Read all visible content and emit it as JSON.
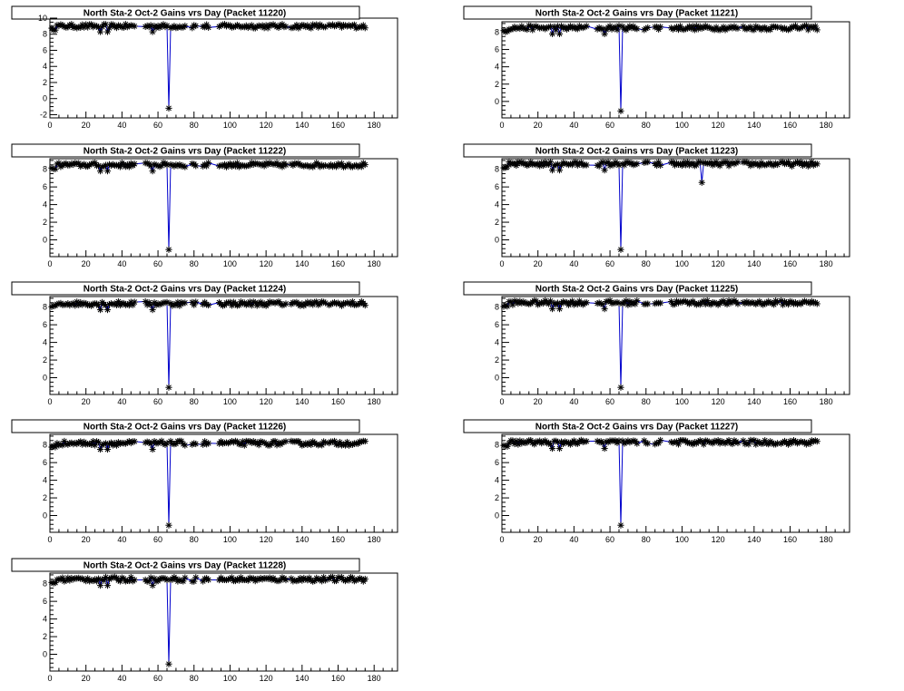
{
  "colors": {
    "series_line": "#0000cc",
    "marker": "#000000",
    "frame": "#000000",
    "background": "#ffffff"
  },
  "chart_data": [
    {
      "type": "scatter",
      "title": "North Sta-2 Oct-2 Gains vrs Day (Packet 11220)",
      "xlabel": "",
      "ylabel": "",
      "xlim": [
        0,
        193
      ],
      "ylim": [
        -2.4,
        10
      ],
      "xticks": [
        0,
        20,
        40,
        60,
        80,
        100,
        120,
        140,
        160,
        180
      ],
      "yticks": [
        -2,
        0,
        2,
        4,
        6,
        8,
        10
      ],
      "baseline": 9.0,
      "dips": [
        {
          "x": 66,
          "y": -1.2
        }
      ],
      "grid": false
    },
    {
      "type": "scatter",
      "title": "North Sta-2 Oct-2 Gains vrs Day (Packet 11221)",
      "xlabel": "",
      "ylabel": "",
      "xlim": [
        0,
        193
      ],
      "ylim": [
        -1.9,
        9.2
      ],
      "xticks": [
        0,
        20,
        40,
        60,
        80,
        100,
        120,
        140,
        160,
        180
      ],
      "yticks": [
        0,
        2,
        4,
        6,
        8
      ],
      "baseline": 8.5,
      "dips": [
        {
          "x": 66,
          "y": -1.1
        }
      ],
      "grid": false
    },
    {
      "type": "scatter",
      "title": "North Sta-2 Oct-2 Gains vrs Day (Packet 11222)",
      "xlabel": "",
      "ylabel": "",
      "xlim": [
        0,
        193
      ],
      "ylim": [
        -1.9,
        9.2
      ],
      "xticks": [
        0,
        20,
        40,
        60,
        80,
        100,
        120,
        140,
        160,
        180
      ],
      "yticks": [
        0,
        2,
        4,
        6,
        8
      ],
      "baseline": 8.5,
      "dips": [
        {
          "x": 66,
          "y": -1.1
        }
      ],
      "grid": false
    },
    {
      "type": "scatter",
      "title": "North Sta-2 Oct-2 Gains vrs Day (Packet 11223)",
      "xlabel": "",
      "ylabel": "",
      "xlim": [
        0,
        193
      ],
      "ylim": [
        -1.9,
        9.2
      ],
      "xticks": [
        0,
        20,
        40,
        60,
        80,
        100,
        120,
        140,
        160,
        180
      ],
      "yticks": [
        0,
        2,
        4,
        6,
        8
      ],
      "baseline": 8.6,
      "dips": [
        {
          "x": 66,
          "y": -1.1
        },
        {
          "x": 111,
          "y": 6.5
        }
      ],
      "grid": false
    },
    {
      "type": "scatter",
      "title": "North Sta-2 Oct-2 Gains vrs Day (Packet 11224)",
      "xlabel": "",
      "ylabel": "",
      "xlim": [
        0,
        193
      ],
      "ylim": [
        -1.9,
        9.2
      ],
      "xticks": [
        0,
        20,
        40,
        60,
        80,
        100,
        120,
        140,
        160,
        180
      ],
      "yticks": [
        0,
        2,
        4,
        6,
        8
      ],
      "baseline": 8.4,
      "dips": [
        {
          "x": 66,
          "y": -1.1
        }
      ],
      "grid": false
    },
    {
      "type": "scatter",
      "title": "North Sta-2 Oct-2 Gains vrs Day (Packet 11225)",
      "xlabel": "",
      "ylabel": "",
      "xlim": [
        0,
        193
      ],
      "ylim": [
        -1.9,
        9.2
      ],
      "xticks": [
        0,
        20,
        40,
        60,
        80,
        100,
        120,
        140,
        160,
        180
      ],
      "yticks": [
        0,
        2,
        4,
        6,
        8
      ],
      "baseline": 8.5,
      "dips": [
        {
          "x": 66,
          "y": -1.1
        }
      ],
      "grid": false
    },
    {
      "type": "scatter",
      "title": "North Sta-2 Oct-2 Gains vrs Day (Packet 11226)",
      "xlabel": "",
      "ylabel": "",
      "xlim": [
        0,
        193
      ],
      "ylim": [
        -1.9,
        9.2
      ],
      "xticks": [
        0,
        20,
        40,
        60,
        80,
        100,
        120,
        140,
        160,
        180
      ],
      "yticks": [
        0,
        2,
        4,
        6,
        8
      ],
      "baseline": 8.2,
      "dips": [
        {
          "x": 66,
          "y": -1.1
        }
      ],
      "grid": false
    },
    {
      "type": "scatter",
      "title": "North Sta-2 Oct-2 Gains vrs Day (Packet 11227)",
      "xlabel": "",
      "ylabel": "",
      "xlim": [
        0,
        193
      ],
      "ylim": [
        -1.9,
        9.2
      ],
      "xticks": [
        0,
        20,
        40,
        60,
        80,
        100,
        120,
        140,
        160,
        180
      ],
      "yticks": [
        0,
        2,
        4,
        6,
        8
      ],
      "baseline": 8.3,
      "dips": [
        {
          "x": 66,
          "y": -1.1
        }
      ],
      "grid": false
    },
    {
      "type": "scatter",
      "title": "North Sta-2 Oct-2 Gains vrs Day (Packet 11228)",
      "xlabel": "",
      "ylabel": "",
      "xlim": [
        0,
        193
      ],
      "ylim": [
        -1.9,
        9.2
      ],
      "xticks": [
        0,
        20,
        40,
        60,
        80,
        100,
        120,
        140,
        160,
        180
      ],
      "yticks": [
        0,
        2,
        4,
        6,
        8
      ],
      "baseline": 8.5,
      "dips": [
        {
          "x": 66,
          "y": -1.1
        }
      ],
      "grid": false
    }
  ]
}
